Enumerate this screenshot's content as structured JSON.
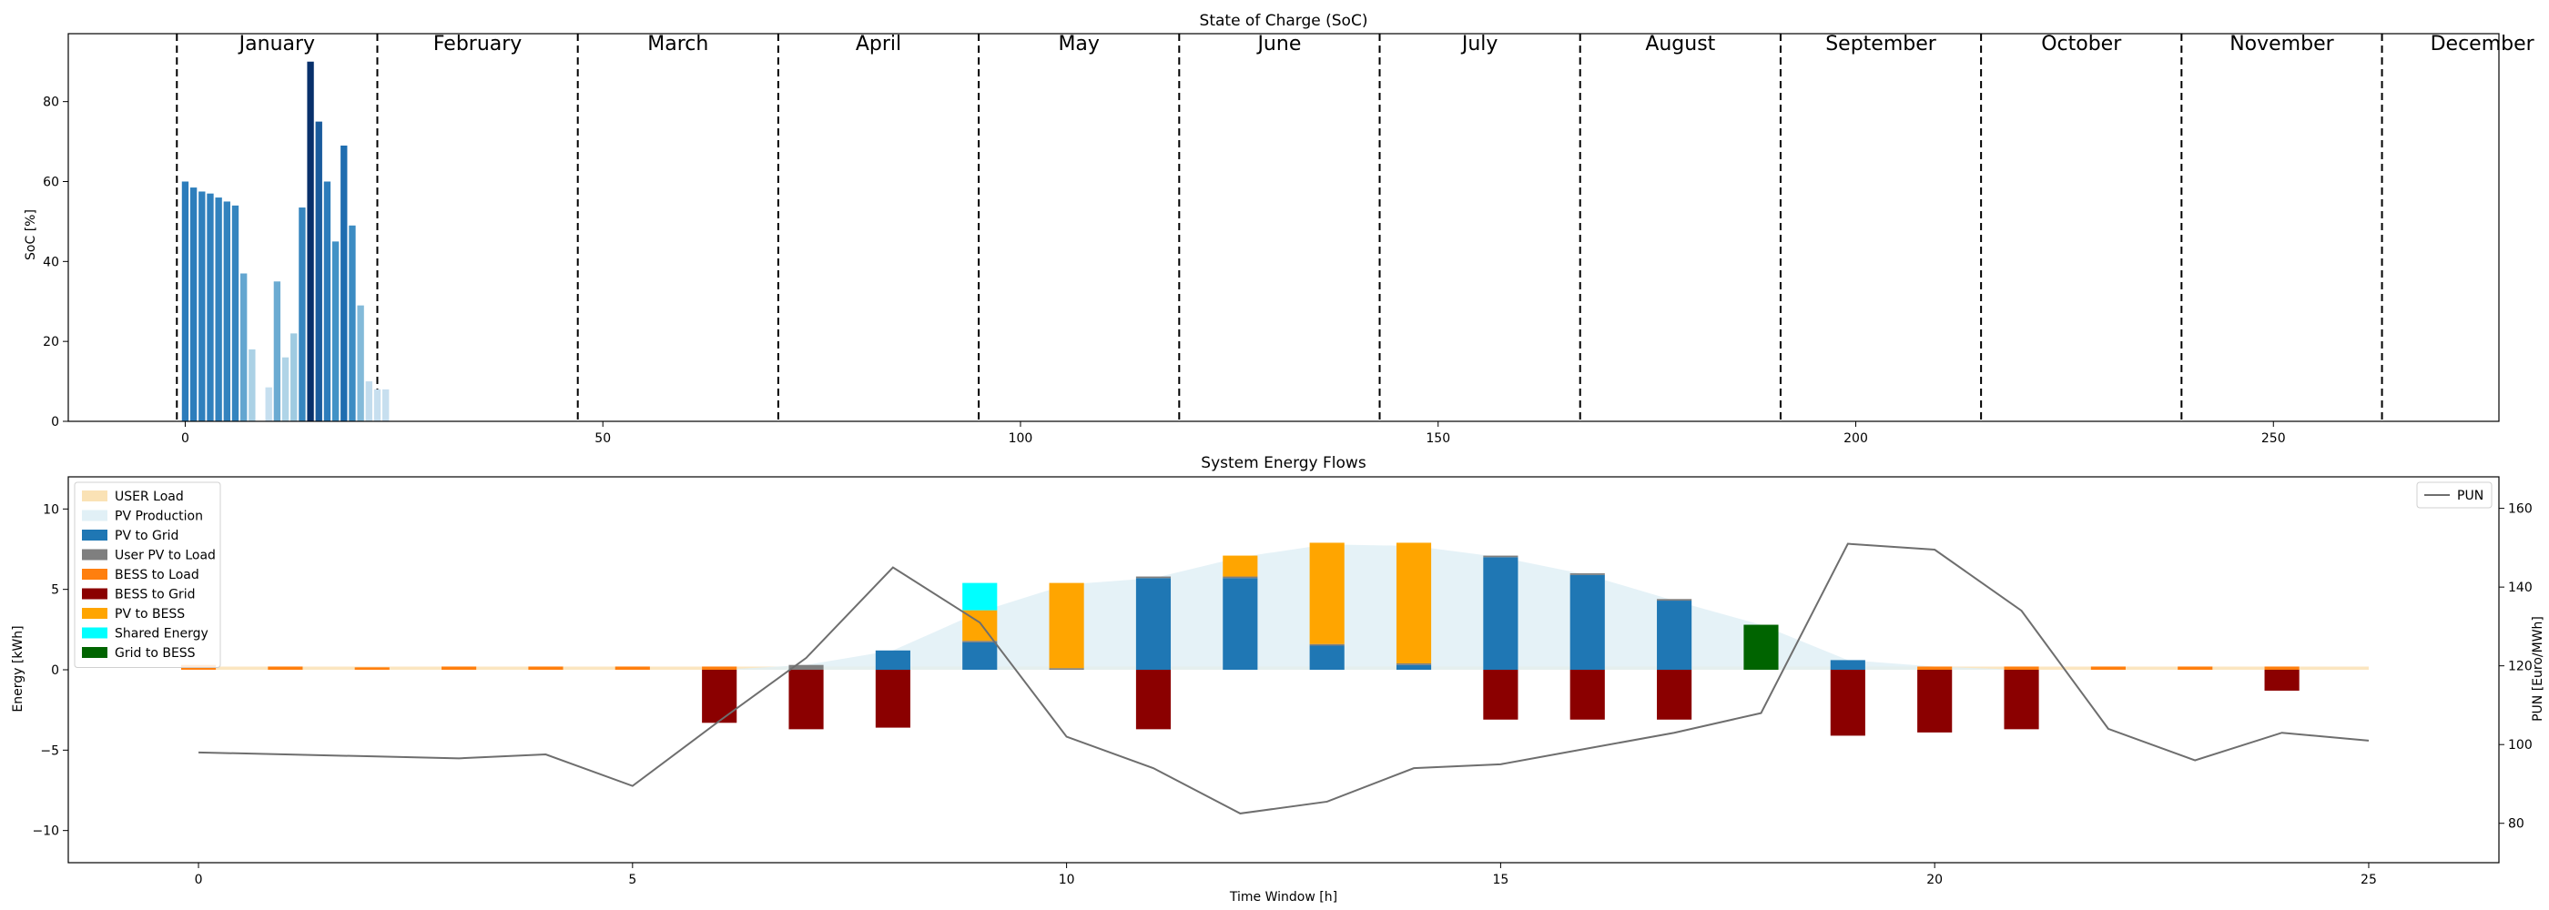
{
  "chart_data": [
    {
      "type": "bar",
      "title": "State of Charge (SoC)",
      "xlabel": "",
      "ylabel": "SoC [%]",
      "xlim": [
        -14,
        277
      ],
      "ylim": [
        0,
        97
      ],
      "xticks": [
        0,
        50,
        100,
        150,
        200,
        250
      ],
      "yticks": [
        0,
        20,
        40,
        60,
        80
      ],
      "month_boundaries": [
        -1,
        23,
        47,
        71,
        95,
        119,
        143,
        167,
        191,
        215,
        239,
        263
      ],
      "months": [
        "January",
        "February",
        "March",
        "April",
        "May",
        "June",
        "July",
        "August",
        "September",
        "October",
        "November",
        "December"
      ],
      "bar_color_map": "Blues (shade by SoC value)",
      "x": [
        0,
        1,
        2,
        3,
        4,
        5,
        6,
        7,
        8,
        9,
        10,
        11,
        12,
        13,
        14,
        15,
        16,
        17,
        18,
        19,
        20,
        21,
        22,
        23,
        24
      ],
      "values": [
        60,
        58.5,
        57.5,
        57,
        56,
        55,
        54,
        37,
        18,
        0,
        8.5,
        35,
        16,
        22,
        53.5,
        90,
        75,
        60,
        45,
        69,
        49,
        29,
        10,
        8,
        8
      ]
    },
    {
      "type": "bar",
      "title": "System Energy Flows",
      "xlabel": "Time Window [h]",
      "ylabel": "Energy [kWh]",
      "y2label": "PUN [Euro/MWh]",
      "xlim": [
        -1.5,
        26.5
      ],
      "ylim": [
        -12,
        12
      ],
      "y2lim": [
        70,
        168
      ],
      "xticks": [
        0,
        5,
        10,
        15,
        20,
        25
      ],
      "yticks": [
        -10,
        -5,
        0,
        5,
        10
      ],
      "y2ticks": [
        80,
        100,
        120,
        140,
        160
      ],
      "legend_position": "upper-left",
      "legend2_position": "upper-right",
      "x": [
        0,
        1,
        2,
        3,
        4,
        5,
        6,
        7,
        8,
        9,
        10,
        11,
        12,
        13,
        14,
        15,
        16,
        17,
        18,
        19,
        20,
        21,
        22,
        23,
        24,
        25
      ],
      "series": [
        {
          "name": "USER Load",
          "kind": "area",
          "color": "#fae2b5",
          "values": [
            0.2,
            0.2,
            0.2,
            0.2,
            0.2,
            0.2,
            0.2,
            0.2,
            0.2,
            0.2,
            0.2,
            0.2,
            0.2,
            0.2,
            0.2,
            0.2,
            0.2,
            0.2,
            0.2,
            0.2,
            0.2,
            0.2,
            0.2,
            0.2,
            0.2,
            0.2
          ]
        },
        {
          "name": "PV Production",
          "kind": "area",
          "color": "#e1f0f6",
          "values": [
            0,
            0,
            0,
            0,
            0,
            0,
            0,
            0.3,
            1.2,
            3.6,
            5.3,
            5.7,
            7,
            7.8,
            7.7,
            7,
            5.9,
            4.3,
            2.8,
            0.6,
            0.2,
            0,
            0,
            0,
            0,
            0
          ]
        },
        {
          "name": "PV to Grid",
          "color": "#1f77b4",
          "values": [
            0,
            0,
            0,
            0,
            0,
            0,
            0,
            0,
            1.2,
            1.7,
            0,
            5.7,
            5.7,
            1.5,
            0.3,
            7,
            5.9,
            4.3,
            0,
            0.6,
            0,
            0,
            0,
            0,
            0,
            0
          ]
        },
        {
          "name": "User PV to Load",
          "color": "#7f7f7f",
          "values": [
            0,
            0,
            0,
            0,
            0,
            0,
            0,
            0.3,
            0,
            0.1,
            0.1,
            0.1,
            0.1,
            0.1,
            0.1,
            0.1,
            0.1,
            0.1,
            0,
            0,
            0,
            0,
            0,
            0,
            0,
            0
          ]
        },
        {
          "name": "BESS to Load",
          "color": "#ff7f0e",
          "values": [
            0.3,
            0.2,
            0.15,
            0.2,
            0.2,
            0.2,
            0.2,
            0,
            0,
            0,
            0,
            0,
            0,
            0,
            0,
            0,
            0,
            0,
            0,
            0,
            0.2,
            0.2,
            0.2,
            0.2,
            0.2,
            0
          ]
        },
        {
          "name": "BESS to Grid",
          "color": "#8b0000",
          "values": [
            0,
            0,
            0,
            0,
            0,
            0,
            -3.3,
            -3.7,
            -3.6,
            0,
            0,
            -3.7,
            0,
            0,
            0,
            -3.1,
            -3.1,
            -3.1,
            0,
            -4.1,
            -3.9,
            -3.7,
            0,
            0,
            -1.3,
            0
          ]
        },
        {
          "name": "PV to BESS",
          "color": "#ffa500",
          "values": [
            0,
            0,
            0,
            0,
            0,
            0,
            0,
            0,
            0,
            1.9,
            5.3,
            0,
            1.3,
            6.3,
            7.5,
            0,
            0,
            0,
            0,
            0,
            0,
            0,
            0,
            0,
            0,
            0
          ]
        },
        {
          "name": "Shared Energy",
          "color": "#00ffff",
          "values": [
            0,
            0,
            0,
            0,
            0,
            0,
            0,
            0,
            0,
            1.7,
            0,
            0,
            0,
            0,
            0,
            0,
            0,
            0,
            0,
            0,
            0,
            0,
            0,
            0,
            0,
            0
          ]
        },
        {
          "name": "Grid to BESS",
          "color": "#006400",
          "values": [
            0,
            0,
            0,
            0,
            0,
            0,
            0,
            0,
            0,
            0,
            0,
            0,
            0,
            0,
            0,
            0,
            0,
            0,
            2.8,
            0,
            0,
            0,
            0,
            0,
            0,
            0
          ]
        }
      ],
      "secondary_series": {
        "name": "PUN",
        "color": "#6e6e6e",
        "values": [
          98,
          97.5,
          97,
          96.5,
          97.5,
          89.5,
          106,
          122,
          145,
          131,
          102,
          94,
          82.5,
          85.5,
          94,
          95,
          99,
          103,
          108,
          151,
          149.5,
          134,
          104,
          96,
          103,
          101
        ]
      }
    }
  ]
}
